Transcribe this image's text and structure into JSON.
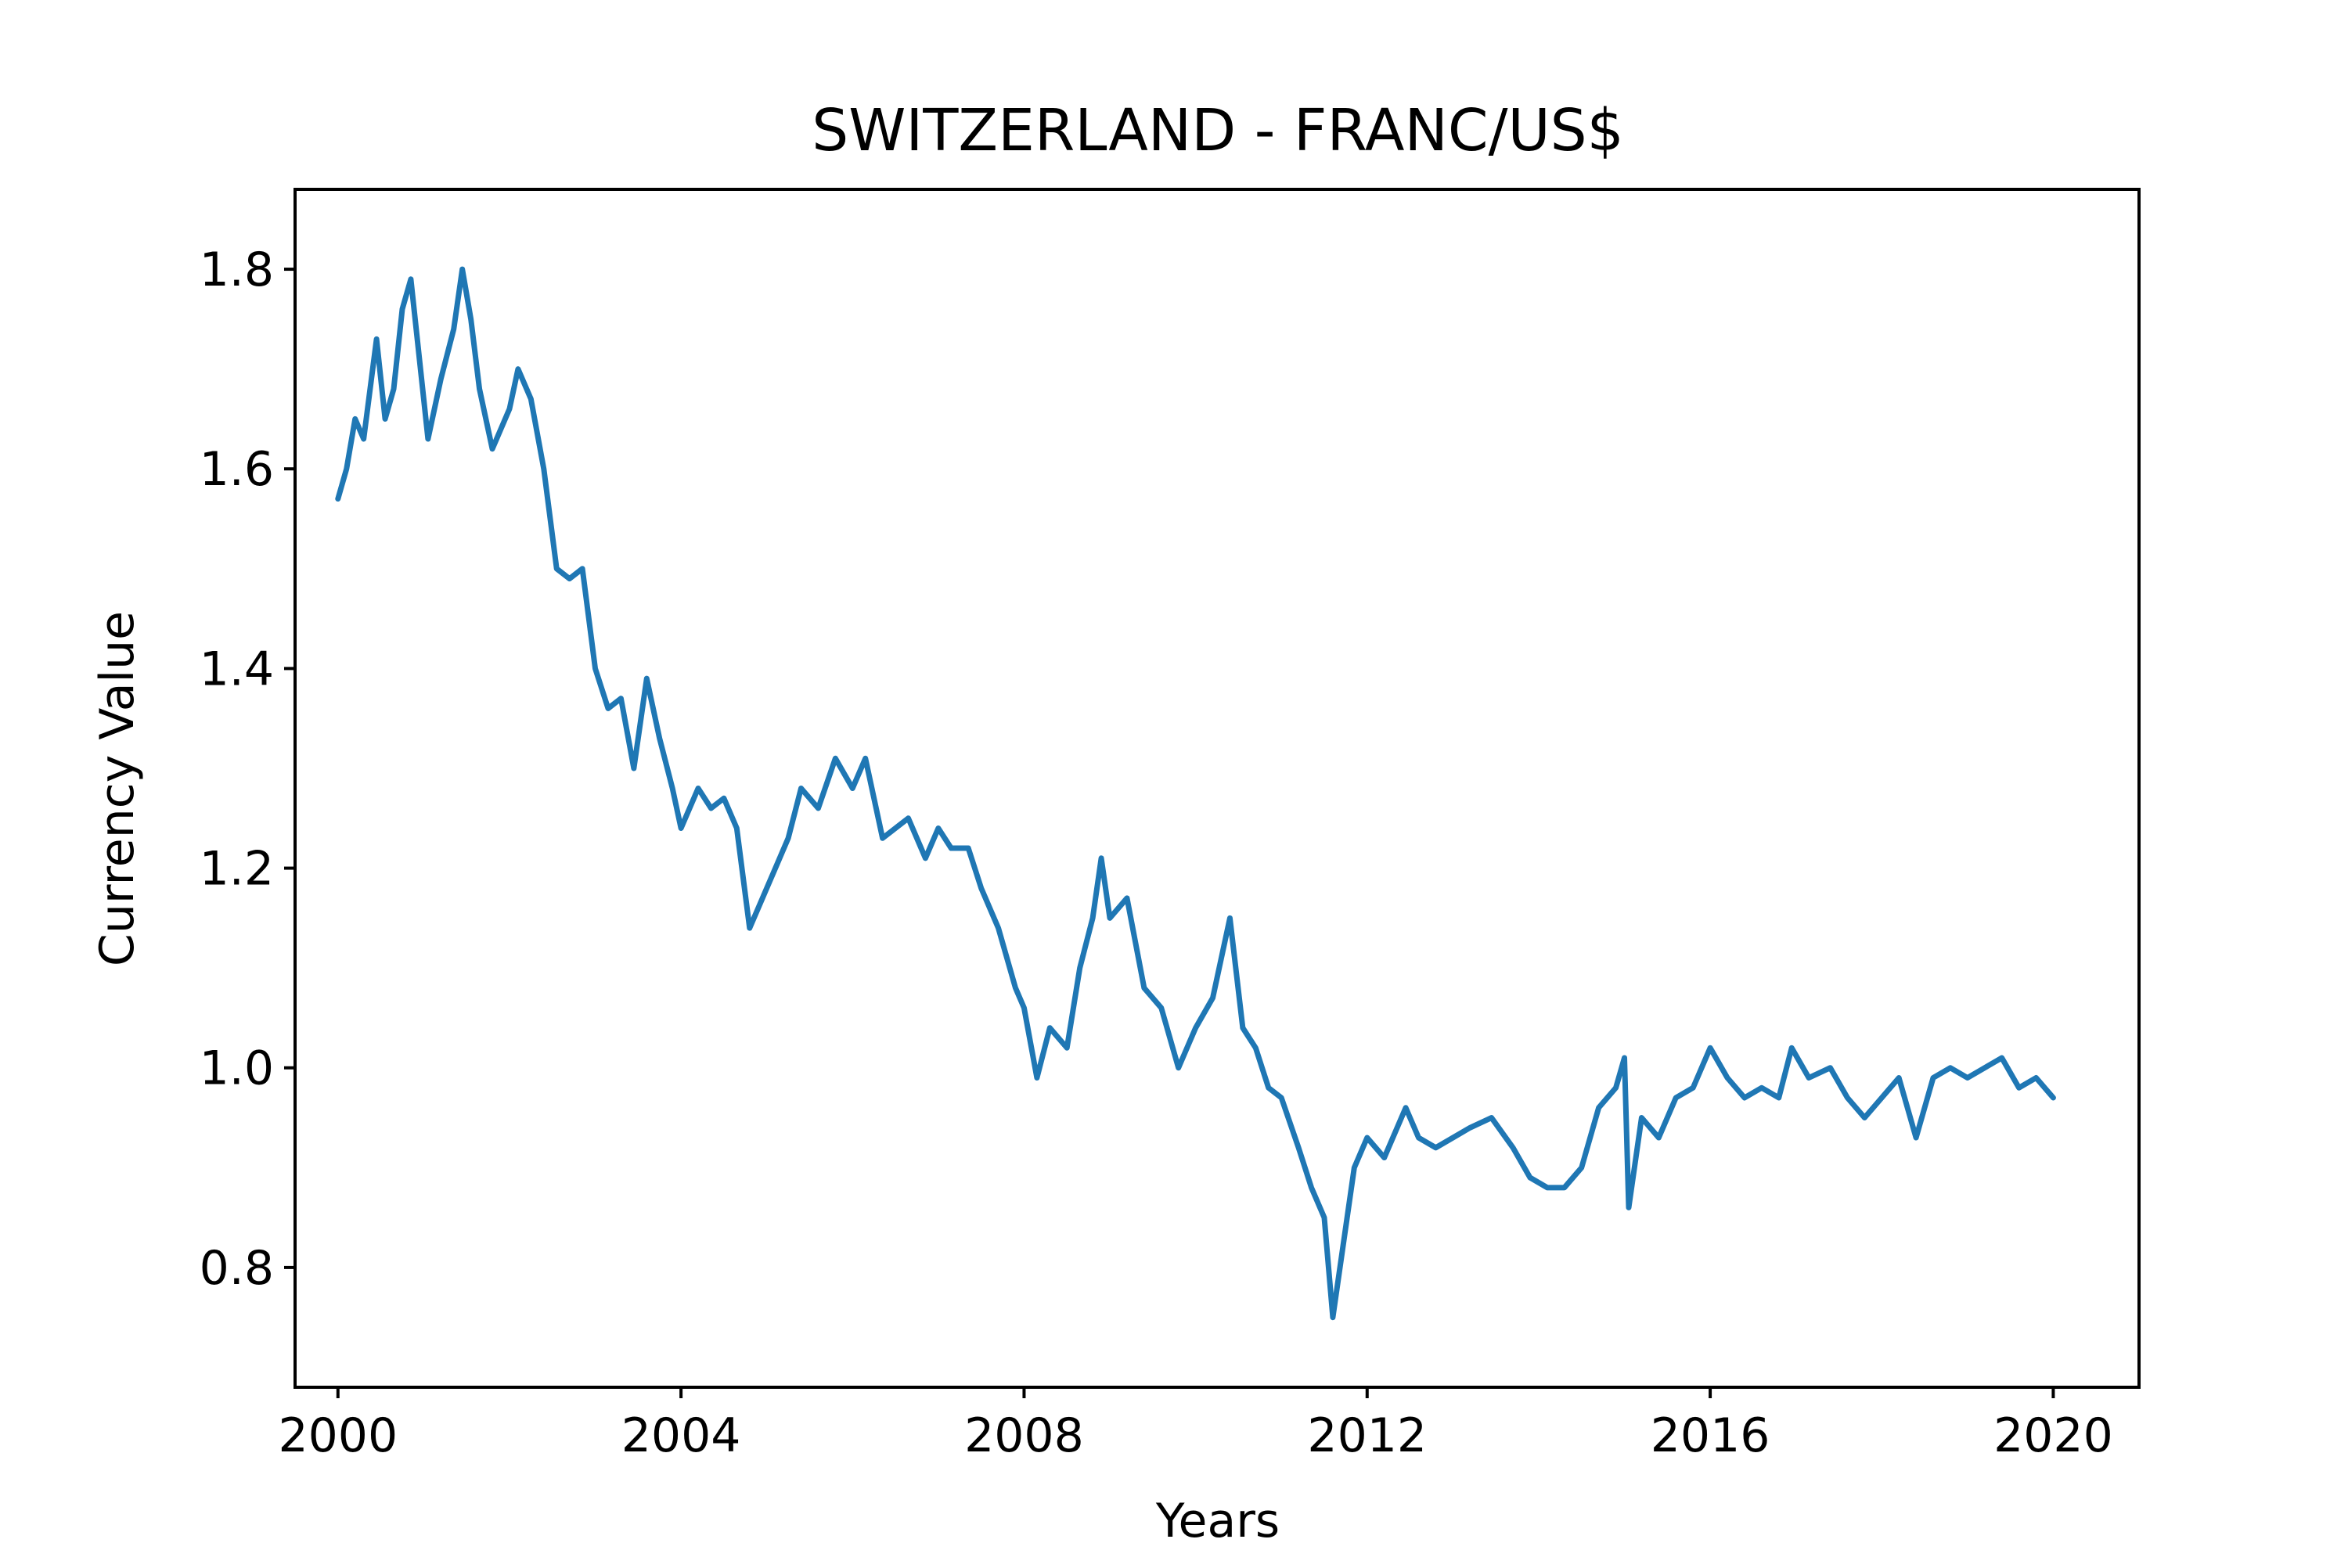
{
  "chart_data": {
    "type": "line",
    "title": "SWITZERLAND - FRANC/US$",
    "xlabel": "Years",
    "ylabel": "Currency Value",
    "xlim": [
      1999.5,
      2021.0
    ],
    "ylim": [
      0.68,
      1.88
    ],
    "x_ticks": [
      2000,
      2004,
      2008,
      2012,
      2016,
      2020
    ],
    "y_ticks": [
      0.8,
      1.0,
      1.2,
      1.4,
      1.6,
      1.8
    ],
    "x_tick_labels": [
      "2000",
      "2004",
      "2008",
      "2012",
      "2016",
      "2020"
    ],
    "y_tick_labels": [
      "0.8",
      "1.0",
      "1.2",
      "1.4",
      "1.6",
      "1.8"
    ],
    "grid": false,
    "series": [
      {
        "color": "#1f77b4",
        "x": [
          2000.0,
          2000.1,
          2000.2,
          2000.3,
          2000.45,
          2000.55,
          2000.65,
          2000.75,
          2000.85,
          2000.95,
          2001.05,
          2001.2,
          2001.35,
          2001.45,
          2001.55,
          2001.65,
          2001.8,
          2002.0,
          2002.1,
          2002.25,
          2002.4,
          2002.55,
          2002.7,
          2002.85,
          2003.0,
          2003.15,
          2003.3,
          2003.45,
          2003.6,
          2003.75,
          2003.9,
          2004.0,
          2004.2,
          2004.35,
          2004.5,
          2004.65,
          2004.8,
          2004.95,
          2005.1,
          2005.25,
          2005.4,
          2005.6,
          2005.8,
          2006.0,
          2006.15,
          2006.35,
          2006.5,
          2006.65,
          2006.85,
          2007.0,
          2007.15,
          2007.35,
          2007.5,
          2007.7,
          2007.9,
          2008.0,
          2008.15,
          2008.3,
          2008.5,
          2008.65,
          2008.8,
          2008.9,
          2009.0,
          2009.2,
          2009.4,
          2009.6,
          2009.8,
          2010.0,
          2010.2,
          2010.4,
          2010.55,
          2010.7,
          2010.85,
          2011.0,
          2011.2,
          2011.35,
          2011.5,
          2011.6,
          2011.7,
          2011.85,
          2012.0,
          2012.2,
          2012.45,
          2012.6,
          2012.8,
          2013.0,
          2013.2,
          2013.45,
          2013.7,
          2013.9,
          2014.1,
          2014.3,
          2014.5,
          2014.7,
          2014.9,
          2015.0,
          2015.05,
          2015.2,
          2015.4,
          2015.6,
          2015.8,
          2016.0,
          2016.2,
          2016.4,
          2016.6,
          2016.8,
          2016.95,
          2017.15,
          2017.4,
          2017.6,
          2017.8,
          2018.0,
          2018.2,
          2018.4,
          2018.6,
          2018.8,
          2019.0,
          2019.2,
          2019.4,
          2019.6,
          2019.8,
          2020.0
        ],
        "values": [
          1.57,
          1.6,
          1.65,
          1.63,
          1.73,
          1.65,
          1.68,
          1.76,
          1.79,
          1.71,
          1.63,
          1.69,
          1.74,
          1.8,
          1.75,
          1.68,
          1.62,
          1.66,
          1.7,
          1.67,
          1.6,
          1.5,
          1.49,
          1.5,
          1.4,
          1.36,
          1.37,
          1.3,
          1.39,
          1.33,
          1.28,
          1.24,
          1.28,
          1.26,
          1.27,
          1.24,
          1.14,
          1.17,
          1.2,
          1.23,
          1.28,
          1.26,
          1.31,
          1.28,
          1.31,
          1.23,
          1.24,
          1.25,
          1.21,
          1.24,
          1.22,
          1.22,
          1.18,
          1.14,
          1.08,
          1.06,
          0.99,
          1.04,
          1.02,
          1.1,
          1.15,
          1.21,
          1.15,
          1.17,
          1.08,
          1.06,
          1.0,
          1.04,
          1.07,
          1.15,
          1.04,
          1.02,
          0.98,
          0.97,
          0.92,
          0.88,
          0.85,
          0.75,
          0.81,
          0.9,
          0.93,
          0.91,
          0.96,
          0.93,
          0.92,
          0.93,
          0.94,
          0.95,
          0.92,
          0.89,
          0.88,
          0.88,
          0.9,
          0.96,
          0.98,
          1.01,
          0.86,
          0.95,
          0.93,
          0.97,
          0.98,
          1.02,
          0.99,
          0.97,
          0.98,
          0.97,
          1.02,
          0.99,
          1.0,
          0.97,
          0.95,
          0.97,
          0.99,
          0.93,
          0.99,
          1.0,
          0.99,
          1.0,
          1.01,
          0.98,
          0.99,
          0.97
        ]
      }
    ]
  }
}
